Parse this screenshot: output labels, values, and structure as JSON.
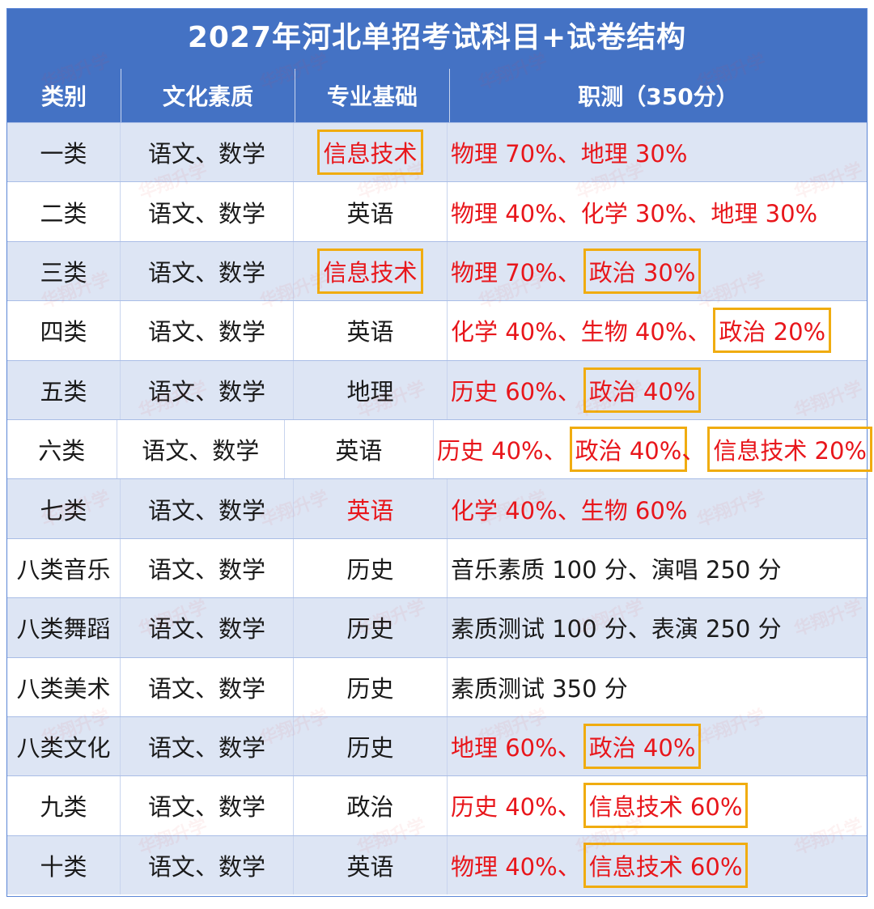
{
  "title": "2027年河北单招考试科目+试卷结构",
  "headers": [
    "类别",
    "文化素质",
    "专业基础",
    "职测（350分）"
  ],
  "watermark": "华翔升学",
  "rows": [
    {
      "category": "一类",
      "culture": "语文、数学",
      "basic": "信息技术",
      "basic_red": true,
      "basic_boxed": true,
      "exam": [
        {
          "text": "物理 70%",
          "boxed": false
        },
        {
          "text": "地理 30%",
          "boxed": false
        }
      ],
      "exam_red": true
    },
    {
      "category": "二类",
      "culture": "语文、数学",
      "basic": "英语",
      "basic_red": false,
      "basic_boxed": false,
      "exam": [
        {
          "text": "物理 40%",
          "boxed": false
        },
        {
          "text": "化学 30%",
          "boxed": false
        },
        {
          "text": "地理 30%",
          "boxed": false
        }
      ],
      "exam_red": true
    },
    {
      "category": "三类",
      "culture": "语文、数学",
      "basic": "信息技术",
      "basic_red": true,
      "basic_boxed": true,
      "exam": [
        {
          "text": "物理 70%",
          "boxed": false
        },
        {
          "text": "政治 30%",
          "boxed": true
        }
      ],
      "exam_red": true
    },
    {
      "category": "四类",
      "culture": "语文、数学",
      "basic": "英语",
      "basic_red": false,
      "basic_boxed": false,
      "exam": [
        {
          "text": "化学 40%",
          "boxed": false
        },
        {
          "text": "生物 40%",
          "boxed": false
        },
        {
          "text": "政治 20%",
          "boxed": true
        }
      ],
      "exam_red": true
    },
    {
      "category": "五类",
      "culture": "语文、数学",
      "basic": "地理",
      "basic_red": false,
      "basic_boxed": false,
      "exam": [
        {
          "text": "历史 60%",
          "boxed": false
        },
        {
          "text": "政治 40%",
          "boxed": true
        }
      ],
      "exam_red": true
    },
    {
      "category": "六类",
      "culture": "语文、数学",
      "basic": "英语",
      "basic_red": false,
      "basic_boxed": false,
      "exam": [
        {
          "text": "历史 40%",
          "boxed": false
        },
        {
          "text": "政治 40%",
          "boxed": true
        },
        {
          "text": "信息技术 20%",
          "boxed": true
        }
      ],
      "exam_red": true
    },
    {
      "category": "七类",
      "culture": "语文、数学",
      "basic": "英语",
      "basic_red": true,
      "basic_boxed": false,
      "exam": [
        {
          "text": "化学 40%",
          "boxed": false
        },
        {
          "text": "生物 60%",
          "boxed": false
        }
      ],
      "exam_red": true
    },
    {
      "category": "八类音乐",
      "culture": "语文、数学",
      "basic": "历史",
      "basic_red": false,
      "basic_boxed": false,
      "exam": [
        {
          "text": "音乐素质 100 分",
          "boxed": false
        },
        {
          "text": "演唱 250 分",
          "boxed": false
        }
      ],
      "exam_red": false
    },
    {
      "category": "八类舞蹈",
      "culture": "语文、数学",
      "basic": "历史",
      "basic_red": false,
      "basic_boxed": false,
      "exam": [
        {
          "text": "素质测试 100 分",
          "boxed": false
        },
        {
          "text": "表演 250 分",
          "boxed": false
        }
      ],
      "exam_red": false
    },
    {
      "category": "八类美术",
      "culture": "语文、数学",
      "basic": "历史",
      "basic_red": false,
      "basic_boxed": false,
      "exam": [
        {
          "text": "素质测试 350 分",
          "boxed": false
        }
      ],
      "exam_red": false
    },
    {
      "category": "八类文化",
      "culture": "语文、数学",
      "basic": "历史",
      "basic_red": false,
      "basic_boxed": false,
      "exam": [
        {
          "text": "地理 60%",
          "boxed": false
        },
        {
          "text": "政治 40%",
          "boxed": true
        }
      ],
      "exam_red": true
    },
    {
      "category": "九类",
      "culture": "语文、数学",
      "basic": "政治",
      "basic_red": false,
      "basic_boxed": false,
      "exam": [
        {
          "text": "历史 40%",
          "boxed": false
        },
        {
          "text": "信息技术 60%",
          "boxed": true
        }
      ],
      "exam_red": true
    },
    {
      "category": "十类",
      "culture": "语文、数学",
      "basic": "英语",
      "basic_red": false,
      "basic_boxed": false,
      "exam": [
        {
          "text": "物理 40%",
          "boxed": false
        },
        {
          "text": "信息技术 60%",
          "boxed": true
        }
      ],
      "exam_red": true
    }
  ],
  "separator": "、",
  "colors": {
    "header_bg": "#4472c4",
    "alt_row": "#dde5f4",
    "accent_red": "#e8161b",
    "highlight_box": "#f0ac10"
  }
}
